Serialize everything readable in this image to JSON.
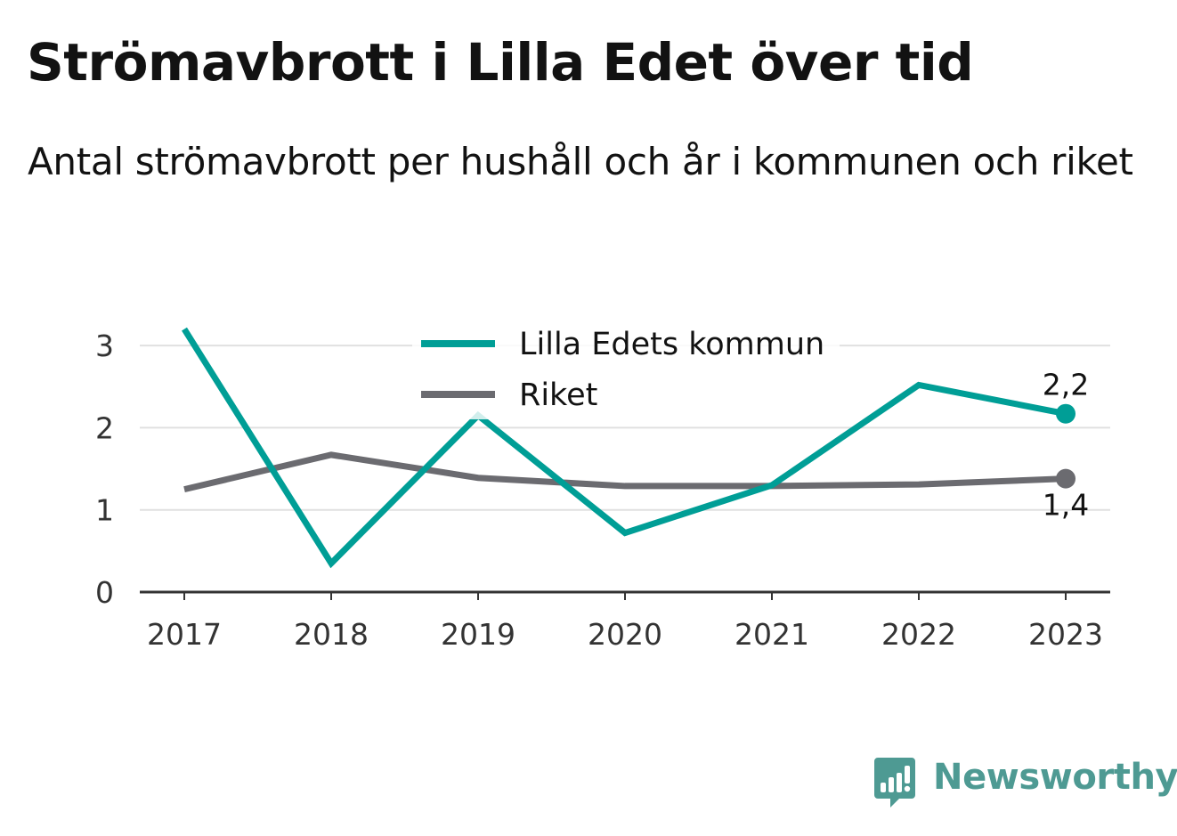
{
  "header": {
    "title": "Strömavbrott i Lilla Edet över tid",
    "subtitle": "Antal strömavbrott per hushåll och år i kommunen och riket"
  },
  "brand": {
    "name": "Newsworthy",
    "icon": "bar-chart-speech-bubble-icon"
  },
  "colors": {
    "lilla_edet": "#009e96",
    "riket": "#6b6b70",
    "gridline": "#e0e0e0",
    "axis": "#333333",
    "brand": "#4e9a93"
  },
  "chart_data": {
    "type": "line",
    "x": [
      "2017",
      "2018",
      "2019",
      "2020",
      "2021",
      "2022",
      "2023"
    ],
    "series": [
      {
        "name": "Lilla Edets kommun",
        "values": [
          3.2,
          0.35,
          2.15,
          0.72,
          1.3,
          2.52,
          2.17
        ],
        "end_label": "2,2"
      },
      {
        "name": "Riket",
        "values": [
          1.25,
          1.67,
          1.39,
          1.29,
          1.29,
          1.31,
          1.38
        ],
        "end_label": "1,4"
      }
    ],
    "yticks": [
      "0",
      "1",
      "2",
      "3"
    ],
    "ylim": [
      0,
      3.2
    ],
    "grid": true,
    "legend": "top-center"
  }
}
